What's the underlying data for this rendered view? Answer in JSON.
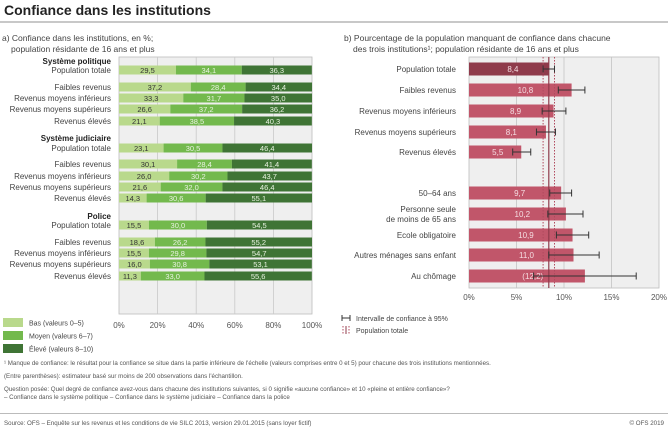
{
  "title": "Confiance dans les institutions",
  "chart_data": [
    {
      "type": "bar",
      "orientation": "horizontal",
      "stacked": true,
      "subtitle": [
        "a) Confiance dans les institutions, en %;",
        "population résidante de 16 ans et plus"
      ],
      "xlim": [
        0,
        100
      ],
      "xticks": [
        "0%",
        "20%",
        "40%",
        "60%",
        "80%",
        "100%"
      ],
      "grid": true,
      "legend_position": "bottom-left",
      "series_names": [
        "Bas (valeurs 0–5)",
        "Moyen (valeurs 6–7)",
        "Élevé (valeurs 8–10)"
      ],
      "colors": [
        "#b9d98c",
        "#73b94d",
        "#3f7435"
      ],
      "groups": [
        {
          "name": "Système politique",
          "rows": [
            {
              "label": "Population totale",
              "values": [
                29.5,
                34.1,
                36.3
              ],
              "texts": [
                "29,5",
                "34,1",
                "36,3"
              ]
            },
            {
              "label": "Faibles revenus",
              "values": [
                37.2,
                28.4,
                34.4
              ],
              "texts": [
                "37,2",
                "28,4",
                "34,4"
              ]
            },
            {
              "label": "Revenus moyens inférieurs",
              "values": [
                33.3,
                31.7,
                35.0
              ],
              "texts": [
                "33,3",
                "31,7",
                "35,0"
              ]
            },
            {
              "label": "Revenus moyens supérieurs",
              "values": [
                26.6,
                37.2,
                36.2
              ],
              "texts": [
                "26,6",
                "37,2",
                "36,2"
              ]
            },
            {
              "label": "Revenus élevés",
              "values": [
                21.1,
                38.5,
                40.3
              ],
              "texts": [
                "21,1",
                "38,5",
                "40,3"
              ]
            }
          ]
        },
        {
          "name": "Système judiciaire",
          "rows": [
            {
              "label": "Population totale",
              "values": [
                23.1,
                30.5,
                46.4
              ],
              "texts": [
                "23,1",
                "30,5",
                "46,4"
              ]
            },
            {
              "label": "Faibles revenus",
              "values": [
                30.1,
                28.4,
                41.4
              ],
              "texts": [
                "30,1",
                "28,4",
                "41,4"
              ]
            },
            {
              "label": "Revenus moyens inférieurs",
              "values": [
                26.0,
                30.2,
                43.7
              ],
              "texts": [
                "26,0",
                "30,2",
                "43,7"
              ]
            },
            {
              "label": "Revenus moyens supérieurs",
              "values": [
                21.6,
                32.0,
                46.4
              ],
              "texts": [
                "21,6",
                "32,0",
                "46,4"
              ]
            },
            {
              "label": "Revenus élevés",
              "values": [
                14.3,
                30.6,
                55.1
              ],
              "texts": [
                "14,3",
                "30,6",
                "55,1"
              ]
            }
          ]
        },
        {
          "name": "Police",
          "rows": [
            {
              "label": "Population totale",
              "values": [
                15.5,
                30.0,
                54.5
              ],
              "texts": [
                "15,5",
                "30,0",
                "54,5"
              ]
            },
            {
              "label": "Faibles revenus",
              "values": [
                18.6,
                26.2,
                55.2
              ],
              "texts": [
                "18,6",
                "26,2",
                "55,2"
              ]
            },
            {
              "label": "Revenus moyens inférieurs",
              "values": [
                15.5,
                29.8,
                54.7
              ],
              "texts": [
                "15,5",
                "29,8",
                "54,7"
              ]
            },
            {
              "label": "Revenus moyens supérieurs",
              "values": [
                16.0,
                30.8,
                53.1
              ],
              "texts": [
                "16,0",
                "30,8",
                "53,1"
              ]
            },
            {
              "label": "Revenus élevés",
              "values": [
                11.3,
                33.0,
                55.6
              ],
              "texts": [
                "11,3",
                "33,0",
                "55,6"
              ]
            }
          ]
        }
      ]
    },
    {
      "type": "bar",
      "orientation": "horizontal",
      "subtitle": [
        "b) Pourcentage de la population manquant de confiance dans chacune",
        "des trois institutions¹; population résidante de 16 ans et plus"
      ],
      "xlim": [
        0,
        20
      ],
      "xticks": [
        "0%",
        "5%",
        "10%",
        "15%",
        "20%"
      ],
      "grid": true,
      "colors": {
        "bar": "#c1566a",
        "total": "#8f3b4b"
      },
      "legend": [
        "Intervalle de confiance à 95%",
        "Population totale"
      ],
      "reference": {
        "value": 8.4,
        "ci": [
          7.8,
          9.0
        ]
      },
      "rows": [
        {
          "label": "Population totale",
          "value": 8.4,
          "text": "8,4",
          "ci": [
            7.8,
            9.0
          ],
          "total": true
        },
        {
          "label": "Faibles revenus",
          "value": 10.8,
          "text": "10,8",
          "ci": [
            9.4,
            12.2
          ]
        },
        {
          "label": "Revenus moyens inférieurs",
          "value": 8.9,
          "text": "8,9",
          "ci": [
            7.7,
            10.2
          ]
        },
        {
          "label": "Revenus moyens supérieurs",
          "value": 8.1,
          "text": "8,1",
          "ci": [
            7.1,
            9.1
          ]
        },
        {
          "label": "Revenus élevés",
          "value": 5.5,
          "text": "5,5",
          "ci": [
            4.6,
            6.5
          ]
        },
        {
          "label": "50–64 ans",
          "value": 9.7,
          "text": "9,7",
          "ci": [
            8.5,
            10.8
          ],
          "gap": true
        },
        {
          "label": "Personne seule|de moins de 65 ans",
          "value": 10.2,
          "text": "10,2",
          "ci": [
            8.3,
            12.0
          ]
        },
        {
          "label": "Ecole obligatoire",
          "value": 10.9,
          "text": "10,9",
          "ci": [
            9.2,
            12.6
          ]
        },
        {
          "label": "Autres ménages sans enfant",
          "value": 11.0,
          "text": "11,0",
          "ci": [
            8.4,
            13.7
          ]
        },
        {
          "label": "Au chômage",
          "value": 12.2,
          "text": "(12,2)",
          "ci": [
            6.8,
            17.6
          ]
        }
      ]
    }
  ],
  "notes": [
    "¹   Manque de confiance: le résultat pour la confiance se situe dans la partie inférieure de l'échelle (valeurs comprises entre 0 et 5) pour chacune des trois institutions mentionnées.",
    "(Entre parenthèses): estimateur basé sur moins de 200 observations dans l'échantillon.",
    "Question posée: Quel degré de confiance avez-vous dans chacune des institutions suivantes, si 0 signifie «aucune confiance» et 10 «pleine et entière confiance»?",
    "– Confiance dans le système politique – Confiance dans le système judiciaire – Confiance dans la police"
  ],
  "source": "Source: OFS – Enquête sur les revenus et les conditions de vie SILC 2013, version 29.01.2015 (sans loyer fictif)",
  "copyright": "© OFS 2019"
}
